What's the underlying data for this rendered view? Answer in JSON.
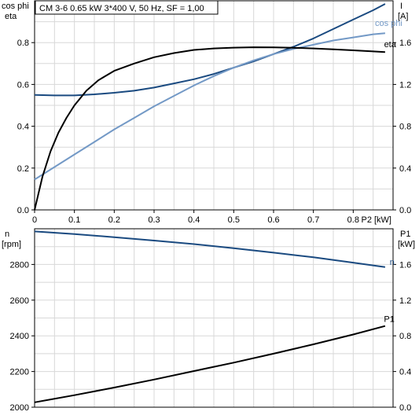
{
  "title": "CM 3-6   0.65 kW   3*400 V, 50 Hz, SF = 1,00",
  "chart_data": [
    {
      "type": "line",
      "name": "top",
      "xlabel": "P2 [kW]",
      "xlim": [
        0,
        0.9
      ],
      "xticks": [
        0,
        0.1,
        0.2,
        0.3,
        0.4,
        0.5,
        0.6,
        0.7,
        0.8
      ],
      "left_axis": {
        "label_lines": [
          "cos phi",
          "eta"
        ],
        "ylim": [
          0,
          1.0
        ],
        "ticks": [
          0.0,
          0.2,
          0.4,
          0.6,
          0.8
        ],
        "tick_labels": [
          "0.0",
          "0.2",
          "0.4",
          "0.6",
          "0.8"
        ]
      },
      "right_axis": {
        "label_lines": [
          "I",
          "[A]"
        ],
        "ylim": [
          0,
          2.0
        ],
        "ticks": [
          0.0,
          0.4,
          0.8,
          1.2,
          1.6
        ],
        "tick_labels": [
          "0.0",
          "0.4",
          "0.8",
          "1.2",
          "1.6"
        ]
      },
      "grid": true,
      "series": [
        {
          "name": "I",
          "axis": "right",
          "color": "#1a4a80",
          "x": [
            0,
            0.05,
            0.1,
            0.15,
            0.2,
            0.25,
            0.3,
            0.35,
            0.4,
            0.45,
            0.5,
            0.55,
            0.6,
            0.65,
            0.7,
            0.75,
            0.8,
            0.85,
            0.88
          ],
          "y": [
            1.1,
            1.095,
            1.095,
            1.105,
            1.12,
            1.14,
            1.17,
            1.21,
            1.25,
            1.3,
            1.36,
            1.42,
            1.49,
            1.56,
            1.64,
            1.73,
            1.82,
            1.91,
            1.97
          ]
        },
        {
          "name": "cos phi",
          "axis": "left",
          "color": "#7399c6",
          "x": [
            0,
            0.05,
            0.1,
            0.15,
            0.2,
            0.25,
            0.3,
            0.35,
            0.4,
            0.45,
            0.5,
            0.55,
            0.6,
            0.65,
            0.7,
            0.75,
            0.8,
            0.85,
            0.88
          ],
          "y": [
            0.145,
            0.205,
            0.265,
            0.325,
            0.385,
            0.44,
            0.495,
            0.545,
            0.595,
            0.64,
            0.68,
            0.715,
            0.745,
            0.77,
            0.79,
            0.81,
            0.825,
            0.84,
            0.845
          ]
        },
        {
          "name": "eta",
          "axis": "left",
          "color": "#000000",
          "x": [
            0,
            0.02,
            0.04,
            0.06,
            0.08,
            0.1,
            0.13,
            0.16,
            0.2,
            0.25,
            0.3,
            0.35,
            0.4,
            0.45,
            0.5,
            0.55,
            0.6,
            0.65,
            0.7,
            0.75,
            0.8,
            0.85,
            0.88
          ],
          "y": [
            0.0,
            0.16,
            0.28,
            0.37,
            0.44,
            0.5,
            0.57,
            0.62,
            0.665,
            0.7,
            0.73,
            0.75,
            0.765,
            0.772,
            0.776,
            0.778,
            0.777,
            0.775,
            0.772,
            0.768,
            0.763,
            0.758,
            0.755
          ]
        }
      ]
    },
    {
      "type": "line",
      "name": "bottom",
      "xlim": [
        0,
        0.9
      ],
      "left_axis": {
        "label_lines": [
          "n",
          "[rpm]"
        ],
        "ylim": [
          2000,
          3000
        ],
        "ticks": [
          2000,
          2200,
          2400,
          2600,
          2800
        ],
        "tick_labels": [
          "2000",
          "2200",
          "2400",
          "2600",
          "2800"
        ]
      },
      "right_axis": {
        "label_lines": [
          "P1",
          "[kW]"
        ],
        "ylim": [
          0,
          2.0
        ],
        "ticks": [
          0.0,
          0.4,
          0.8,
          1.2,
          1.6
        ],
        "tick_labels": [
          "0.0",
          "0.4",
          "0.8",
          "1.2",
          "1.6"
        ]
      },
      "grid": true,
      "series": [
        {
          "name": "n",
          "axis": "left",
          "color": "#1a4a80",
          "x": [
            0,
            0.1,
            0.2,
            0.3,
            0.4,
            0.5,
            0.6,
            0.7,
            0.8,
            0.88
          ],
          "y": [
            2985,
            2970,
            2953,
            2934,
            2914,
            2891,
            2866,
            2840,
            2810,
            2785
          ]
        },
        {
          "name": "P1",
          "axis": "right",
          "color": "#000000",
          "x": [
            0,
            0.1,
            0.2,
            0.3,
            0.4,
            0.5,
            0.6,
            0.7,
            0.8,
            0.88
          ],
          "y": [
            0.055,
            0.135,
            0.22,
            0.31,
            0.405,
            0.5,
            0.6,
            0.705,
            0.815,
            0.91
          ]
        }
      ]
    }
  ]
}
